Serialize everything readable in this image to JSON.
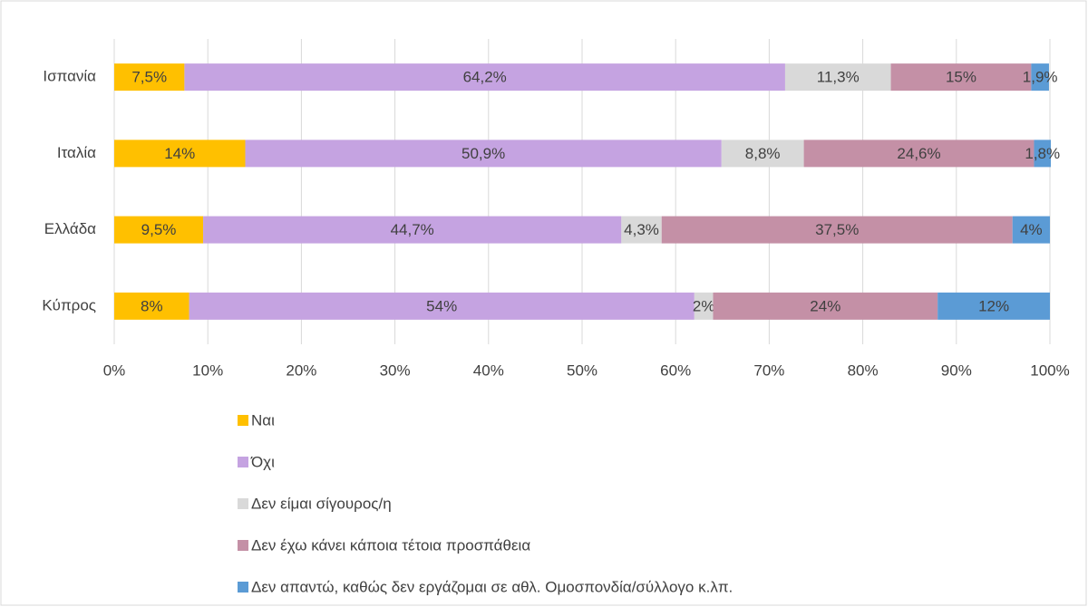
{
  "chart_data": {
    "type": "stacked-barh",
    "categories": [
      "Ισπανία",
      "Ιταλία",
      "Ελλάδα",
      "Κύπρος"
    ],
    "series": [
      {
        "name": "Ναι",
        "color": "#ffc000",
        "values": [
          7.5,
          14,
          9.5,
          8
        ],
        "value_labels": [
          "7,5%",
          "14%",
          "9,5%",
          "8%"
        ]
      },
      {
        "name": "Όχι",
        "color": "#c5a3e1",
        "values": [
          64.2,
          50.9,
          44.7,
          54
        ],
        "value_labels": [
          "64,2%",
          "50,9%",
          "44,7%",
          "54%"
        ]
      },
      {
        "name": "Δεν είμαι σίγουρος/η",
        "color": "#d9d9d9",
        "values": [
          11.3,
          8.8,
          4.3,
          2
        ],
        "value_labels": [
          "11,3%",
          "8,8%",
          "4,3%",
          "2%"
        ]
      },
      {
        "name": "Δεν έχω κάνει κάποια τέτοια προσπάθεια",
        "color": "#c490a6",
        "values": [
          15,
          24.6,
          37.5,
          24
        ],
        "value_labels": [
          "15%",
          "24,6%",
          "37,5%",
          "24%"
        ]
      },
      {
        "name": "Δεν απαντώ, καθώς δεν εργάζομαι σε αθλ. Ομοσπονδία/σύλλογο κ.λπ.",
        "color": "#5b9bd5",
        "values": [
          1.9,
          1.8,
          4,
          12
        ],
        "value_labels": [
          "1,9%",
          "1,8%",
          "4%",
          "12%"
        ]
      }
    ],
    "xlim": [
      0,
      100
    ],
    "xticks": [
      {
        "value": 0,
        "label": "0%"
      },
      {
        "value": 10,
        "label": "10%"
      },
      {
        "value": 20,
        "label": "20%"
      },
      {
        "value": 30,
        "label": "30%"
      },
      {
        "value": 40,
        "label": "40%"
      },
      {
        "value": 50,
        "label": "50%"
      },
      {
        "value": 60,
        "label": "60%"
      },
      {
        "value": 70,
        "label": "70%"
      },
      {
        "value": 80,
        "label": "80%"
      },
      {
        "value": 90,
        "label": "90%"
      },
      {
        "value": 100,
        "label": "100%"
      }
    ],
    "grid": true,
    "legend": "bottom"
  }
}
